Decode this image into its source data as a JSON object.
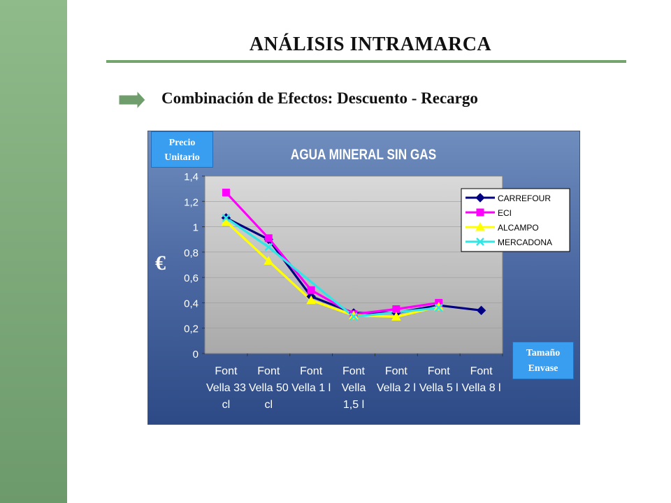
{
  "slide": {
    "title": "ANÁLISIS INTRAMARCA",
    "subtitle": "Combinación de Efectos: Descuento - Recargo"
  },
  "annotations": {
    "precio_line1": "Precio",
    "precio_line2": "Unitario",
    "tamano_line1": "Tamaño",
    "tamano_line2": "Envase",
    "currency": "€"
  },
  "colors": {
    "sidebar": "#7fab7b",
    "rule": "#74a56e",
    "arrow": "#6f9d6b",
    "tag": "#3a9ef0",
    "plot_bg": "#c9c9c9"
  },
  "chart_data": {
    "type": "line",
    "title": "AGUA MINERAL SIN GAS",
    "xlabel": "",
    "ylabel": "€",
    "ylim": [
      0,
      1.4
    ],
    "yticks": [
      "0",
      "0,2",
      "0,4",
      "0,6",
      "0,8",
      "1",
      "1,2",
      "1,4"
    ],
    "categories": [
      [
        "Font",
        "Vella 33",
        "cl"
      ],
      [
        "Font",
        "Vella 50",
        "cl"
      ],
      [
        "Font",
        "Vella 1 l"
      ],
      [
        "Font",
        "Vella",
        "1,5 l"
      ],
      [
        "Font",
        "Vella 2 l"
      ],
      [
        "Font",
        "Vella 5 l"
      ],
      [
        "Font",
        "Vella 8 l"
      ]
    ],
    "legend_position": "top-right",
    "series": [
      {
        "name": "CARREFOUR",
        "color": "#000080",
        "marker": "diamond",
        "values": [
          1.07,
          0.9,
          0.45,
          0.32,
          0.32,
          0.38,
          0.34
        ]
      },
      {
        "name": "ECI",
        "color": "#ff00ff",
        "marker": "square",
        "values": [
          1.27,
          0.91,
          0.5,
          0.31,
          0.35,
          0.4,
          null
        ]
      },
      {
        "name": "ALCAMPO",
        "color": "#ffff00",
        "marker": "triangle",
        "values": [
          1.04,
          0.73,
          0.42,
          0.3,
          0.29,
          0.37,
          null
        ]
      },
      {
        "name": "MERCADONA",
        "color": "#33e6e6",
        "marker": "x",
        "values": [
          1.07,
          0.84,
          null,
          0.29,
          null,
          0.36,
          null
        ]
      }
    ]
  }
}
